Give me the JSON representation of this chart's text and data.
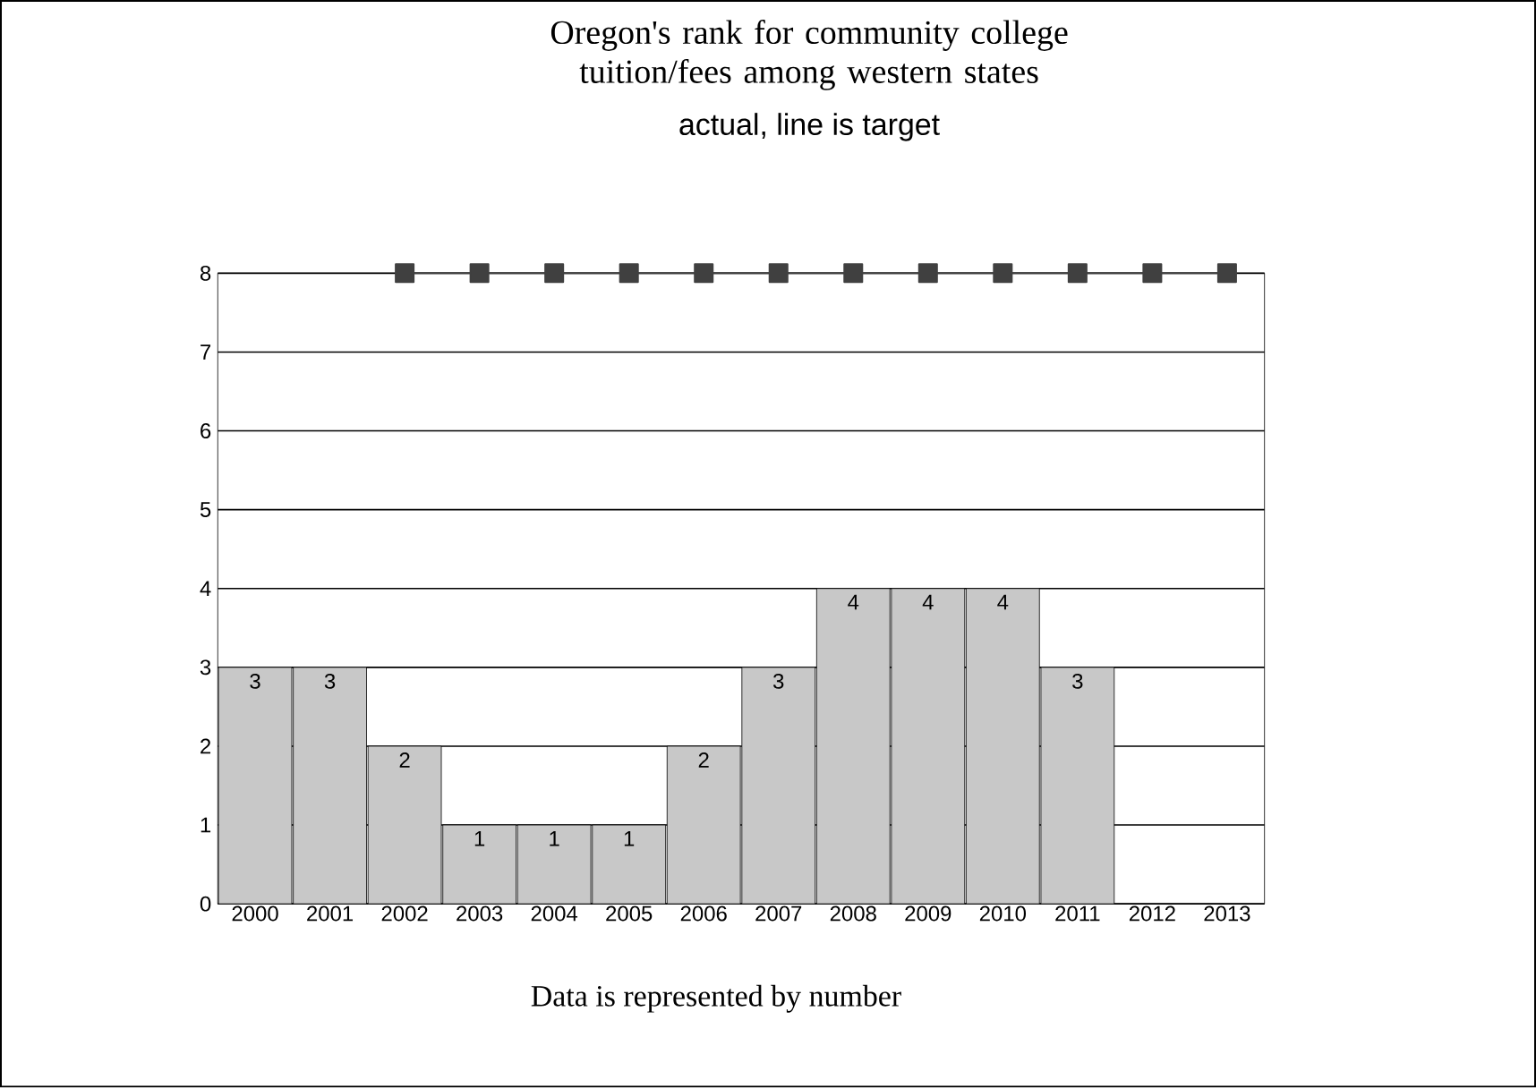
{
  "chart_data": {
    "type": "bar",
    "title": "Oregon's rank for community college tuition/fees among western states",
    "subtitle": "actual, line is target",
    "categories": [
      "2000",
      "2001",
      "2002",
      "2003",
      "2004",
      "2005",
      "2006",
      "2007",
      "2008",
      "2009",
      "2010",
      "2011",
      "2012",
      "2013"
    ],
    "series": [
      {
        "color": "#c8c8c8",
        "values": [
          3,
          3,
          2,
          1,
          1,
          1,
          2,
          3,
          4,
          4,
          4,
          3,
          null,
          null
        ],
        "value_labels": [
          "3",
          "3",
          "2",
          "1",
          "1",
          "1",
          "2",
          "3",
          "4",
          "4",
          "4",
          "3",
          null,
          null
        ]
      },
      {
        "type": "line",
        "color": "#404040",
        "marker": "square",
        "values": [
          null,
          null,
          8,
          8,
          8,
          8,
          8,
          8,
          8,
          8,
          8,
          8,
          8,
          8
        ]
      }
    ],
    "ylim": [
      0,
      8
    ],
    "yticks": [
      0,
      1,
      2,
      3,
      4,
      5,
      6,
      7,
      8
    ],
    "grid": "y",
    "annotations": [
      "Data is represented by number"
    ]
  }
}
